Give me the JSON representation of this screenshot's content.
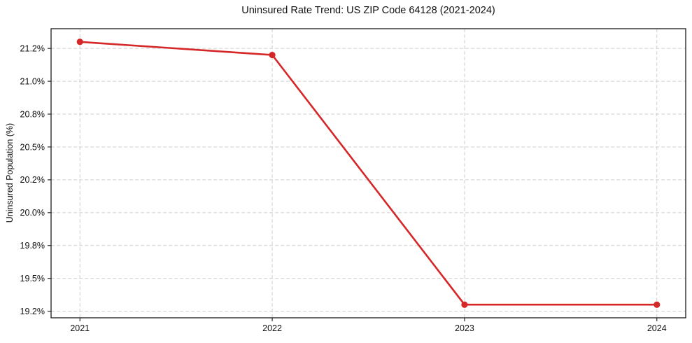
{
  "chart_data": {
    "type": "line",
    "title": "Uninsured Rate Trend: US ZIP Code 64128 (2021-2024)",
    "xlabel": "",
    "ylabel": "Uninsured Population (%)",
    "x": [
      2021,
      2022,
      2023,
      2024
    ],
    "series": [
      {
        "name": "Uninsured rate trend",
        "values": [
          21.3,
          21.2,
          19.3,
          19.3
        ],
        "color": "#d62728",
        "marker": "circle"
      }
    ],
    "xlim": [
      2020.85,
      2024.15
    ],
    "ylim": [
      19.2,
      21.4
    ],
    "xticks": {
      "values": [
        2021,
        2022,
        2023,
        2024
      ],
      "labels": [
        "2021",
        "2022",
        "2023",
        "2024"
      ]
    },
    "yticks": {
      "values": [
        19.25,
        19.5,
        19.75,
        20.0,
        20.25,
        20.5,
        20.75,
        21.0,
        21.25
      ],
      "labels": [
        "19.2%",
        "19.5%",
        "19.8%",
        "20.0%",
        "20.2%",
        "20.5%",
        "20.8%",
        "21.0%",
        "21.2%"
      ]
    },
    "grid": true,
    "grid_style": "dashed",
    "grid_color": "#cfcfcf",
    "legend": false,
    "background_color": "#ffffff"
  }
}
